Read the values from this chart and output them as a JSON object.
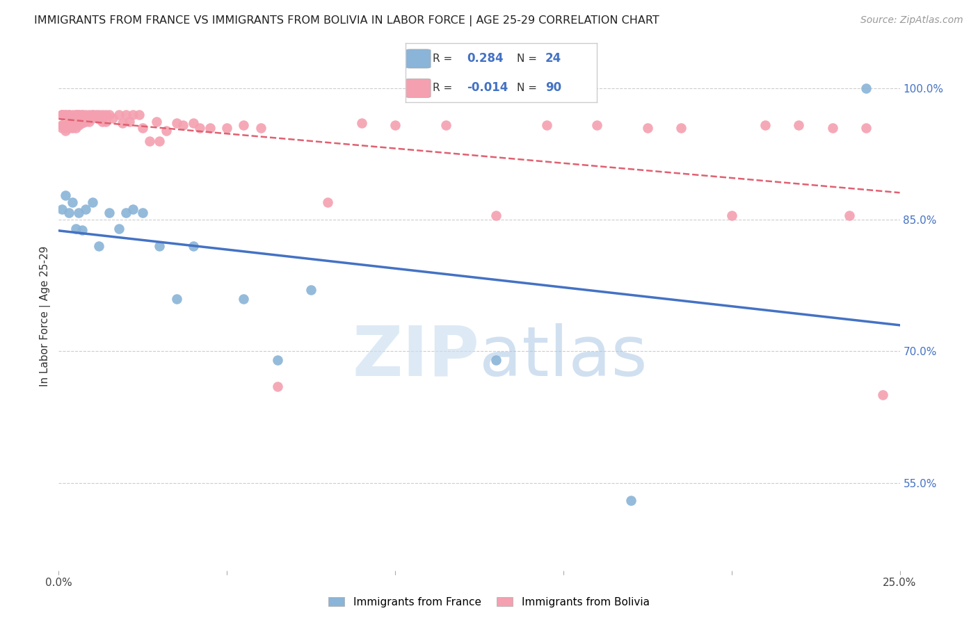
{
  "title": "IMMIGRANTS FROM FRANCE VS IMMIGRANTS FROM BOLIVIA IN LABOR FORCE | AGE 25-29 CORRELATION CHART",
  "source": "Source: ZipAtlas.com",
  "ylabel": "In Labor Force | Age 25-29",
  "xlim": [
    0.0,
    0.25
  ],
  "ylim": [
    0.45,
    1.03
  ],
  "yticks": [
    1.0,
    0.85,
    0.7,
    0.55
  ],
  "ytick_labels": [
    "100.0%",
    "85.0%",
    "70.0%",
    "55.0%"
  ],
  "xtick_labels": [
    "0.0%",
    "",
    "",
    "",
    "",
    "25.0%"
  ],
  "france_color": "#8ab4d8",
  "bolivia_color": "#f4a0b0",
  "france_line_color": "#4472c4",
  "bolivia_line_color": "#e06070",
  "france_R": 0.284,
  "france_N": 24,
  "bolivia_R": -0.014,
  "bolivia_N": 90,
  "france_x": [
    0.001,
    0.002,
    0.003,
    0.004,
    0.005,
    0.006,
    0.007,
    0.008,
    0.01,
    0.012,
    0.015,
    0.018,
    0.02,
    0.022,
    0.025,
    0.03,
    0.035,
    0.04,
    0.055,
    0.065,
    0.075,
    0.13,
    0.17,
    0.24
  ],
  "france_y": [
    0.862,
    0.878,
    0.858,
    0.87,
    0.84,
    0.858,
    0.838,
    0.862,
    0.87,
    0.82,
    0.858,
    0.84,
    0.858,
    0.862,
    0.858,
    0.82,
    0.76,
    0.82,
    0.76,
    0.69,
    0.77,
    0.69,
    0.53,
    1.0
  ],
  "bolivia_x": [
    0.001,
    0.001,
    0.001,
    0.001,
    0.001,
    0.001,
    0.002,
    0.002,
    0.002,
    0.002,
    0.002,
    0.002,
    0.003,
    0.003,
    0.003,
    0.003,
    0.003,
    0.003,
    0.004,
    0.004,
    0.004,
    0.004,
    0.004,
    0.005,
    0.005,
    0.005,
    0.005,
    0.005,
    0.006,
    0.006,
    0.006,
    0.006,
    0.007,
    0.007,
    0.007,
    0.007,
    0.008,
    0.008,
    0.008,
    0.009,
    0.009,
    0.01,
    0.01,
    0.01,
    0.011,
    0.011,
    0.012,
    0.012,
    0.013,
    0.013,
    0.014,
    0.014,
    0.015,
    0.016,
    0.018,
    0.019,
    0.02,
    0.021,
    0.022,
    0.024,
    0.025,
    0.027,
    0.029,
    0.03,
    0.032,
    0.035,
    0.037,
    0.04,
    0.042,
    0.045,
    0.05,
    0.055,
    0.06,
    0.065,
    0.08,
    0.09,
    0.1,
    0.115,
    0.13,
    0.145,
    0.16,
    0.175,
    0.185,
    0.2,
    0.21,
    0.22,
    0.23,
    0.235,
    0.24,
    0.245
  ],
  "bolivia_y": [
    0.97,
    0.97,
    0.97,
    0.958,
    0.958,
    0.955,
    0.97,
    0.97,
    0.958,
    0.955,
    0.955,
    0.952,
    0.97,
    0.97,
    0.968,
    0.96,
    0.958,
    0.955,
    0.97,
    0.968,
    0.962,
    0.958,
    0.955,
    0.97,
    0.97,
    0.968,
    0.962,
    0.955,
    0.97,
    0.97,
    0.966,
    0.958,
    0.97,
    0.97,
    0.966,
    0.96,
    0.97,
    0.968,
    0.962,
    0.97,
    0.962,
    0.97,
    0.97,
    0.966,
    0.97,
    0.968,
    0.97,
    0.965,
    0.97,
    0.962,
    0.97,
    0.962,
    0.97,
    0.966,
    0.97,
    0.96,
    0.97,
    0.962,
    0.97,
    0.97,
    0.955,
    0.94,
    0.962,
    0.94,
    0.952,
    0.96,
    0.958,
    0.96,
    0.955,
    0.955,
    0.955,
    0.958,
    0.955,
    0.66,
    0.87,
    0.96,
    0.958,
    0.958,
    0.855,
    0.958,
    0.958,
    0.955,
    0.955,
    0.855,
    0.958,
    0.958,
    0.955,
    0.855,
    0.955,
    0.65
  ]
}
